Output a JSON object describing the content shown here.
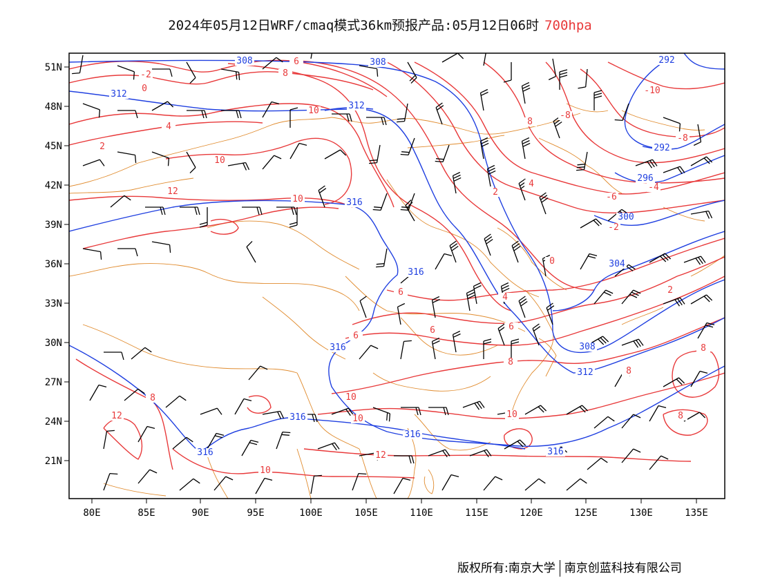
{
  "title": {
    "main": "2024年05月12日WRF/cmaq模式36km预报产品:05月12日06时",
    "level": "700hpa",
    "level_color": "#e8393a"
  },
  "axes": {
    "lon_labels": [
      "80E",
      "85E",
      "90E",
      "95E",
      "100E",
      "105E",
      "110E",
      "115E",
      "120E",
      "125E",
      "130E",
      "135E"
    ],
    "lat_labels": [
      "51N",
      "48N",
      "45N",
      "42N",
      "39N",
      "36N",
      "33N",
      "30N",
      "27N",
      "24N",
      "21N"
    ]
  },
  "colors": {
    "height_contour": "#1f3fe0",
    "temperature_contour": "#e8393a",
    "border": "#e08a2c",
    "wind_barb": "#000000"
  },
  "height_labels": [
    "308",
    "308",
    "312",
    "312",
    "316",
    "316",
    "316",
    "316",
    "316",
    "316",
    "316",
    "312",
    "308",
    "304",
    "300",
    "296",
    "292",
    "292"
  ],
  "temperature_labels": [
    "-2",
    "0",
    "2",
    "4",
    "6",
    "8",
    "10",
    "10",
    "10",
    "12",
    "12",
    "-10",
    "-8",
    "-8",
    "8",
    "4",
    "2",
    "-2",
    "-4",
    "-6",
    "0",
    "2",
    "4",
    "6",
    "6",
    "6",
    "6",
    "8",
    "8",
    "8",
    "8",
    "10",
    "10",
    "10",
    "12",
    "10",
    "8"
  ],
  "copyright": {
    "left": "版权所有:南京大学",
    "right": "南京创蓝科技有限公司"
  }
}
